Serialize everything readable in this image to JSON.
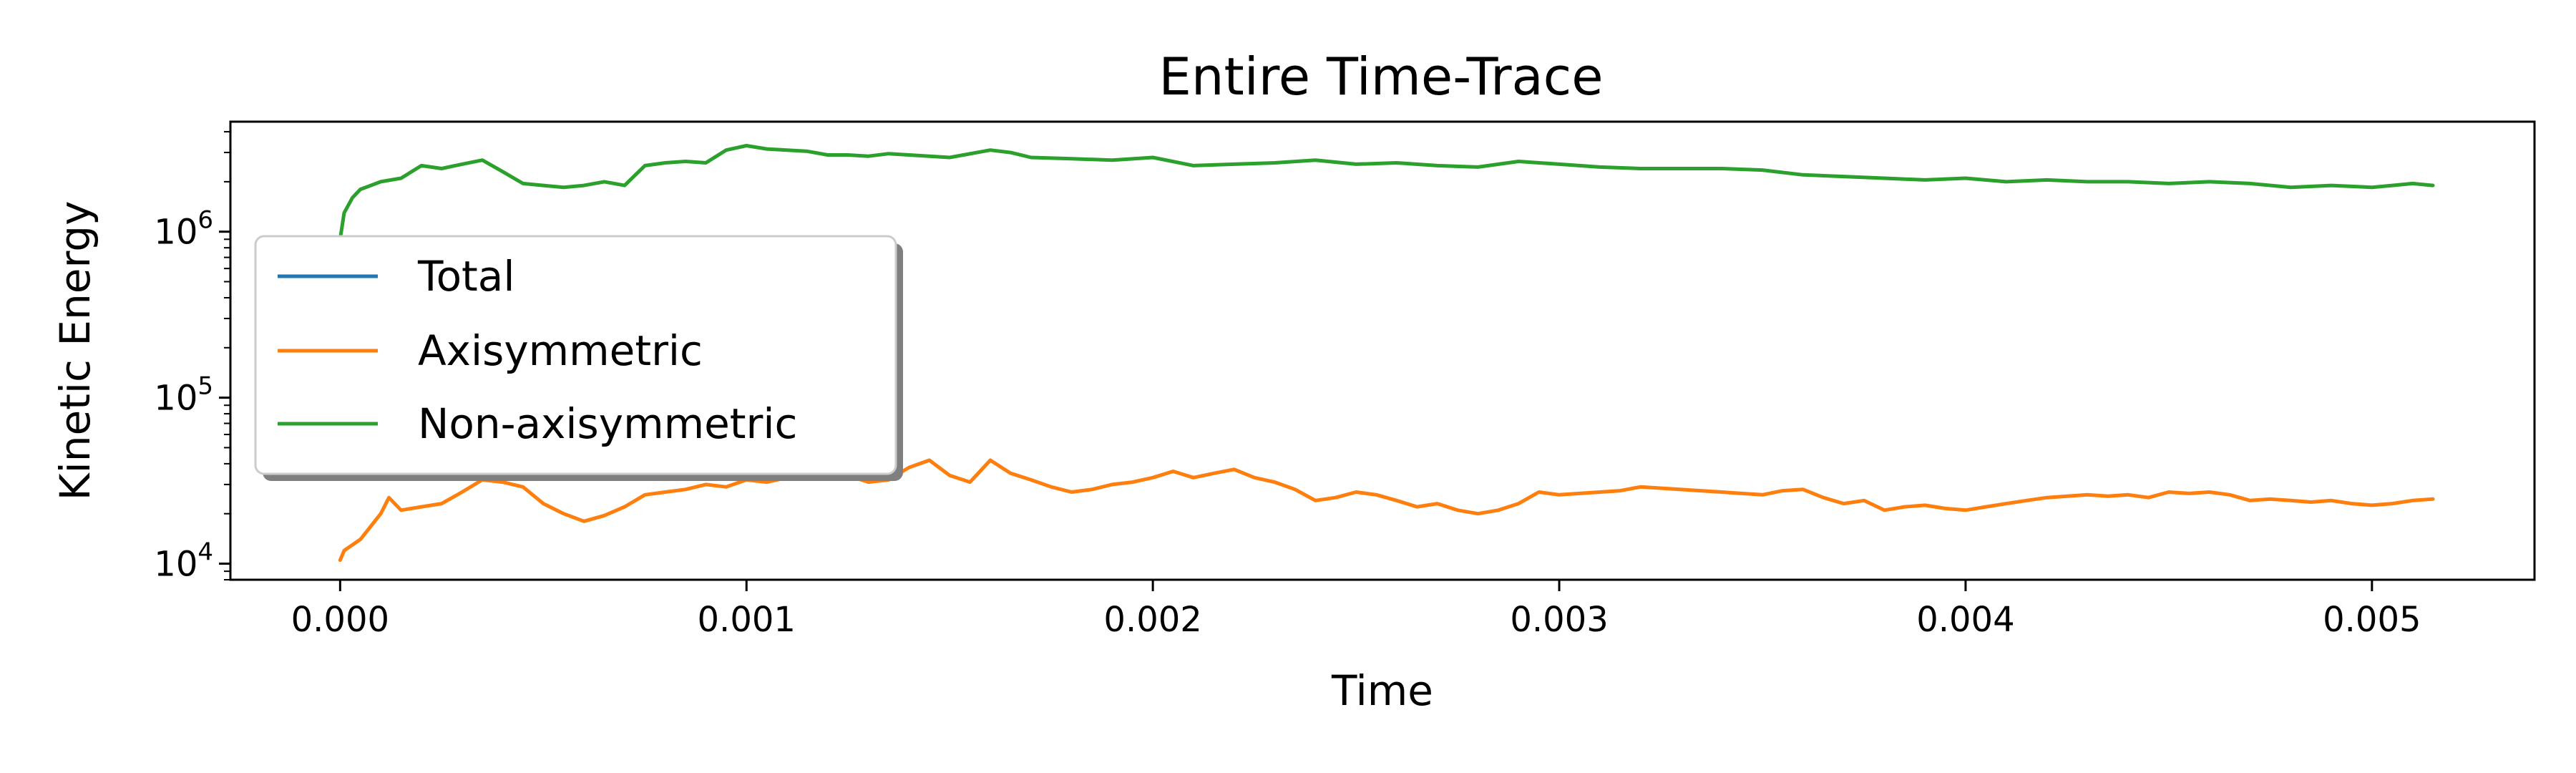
{
  "chart_data": {
    "type": "line",
    "title": "Entire Time-Trace",
    "xlabel": "Time",
    "ylabel": "Kinetic Energy",
    "yscale": "log",
    "xlim": [
      -0.00027,
      0.0054
    ],
    "ylim": [
      8000,
      4600000
    ],
    "xticks": [
      0.0,
      0.001,
      0.002,
      0.003,
      0.004,
      0.005
    ],
    "xtick_labels": [
      "0.000",
      "0.001",
      "0.002",
      "0.003",
      "0.004",
      "0.005"
    ],
    "yticks": [
      10000,
      100000,
      1000000
    ],
    "ytick_base": "10",
    "ytick_exponents": [
      "4",
      "5",
      "6"
    ],
    "grid": false,
    "legend_position": "center-left",
    "series": [
      {
        "name": "Total",
        "color": "#1f77b4",
        "x": [],
        "y": []
      },
      {
        "name": "Axisymmetric",
        "color": "#ff7f0e",
        "x": [
          0.0,
          1e-05,
          5e-05,
          0.0001,
          0.00012,
          0.00015,
          0.0002,
          0.00025,
          0.0003,
          0.00035,
          0.0004,
          0.00045,
          0.0005,
          0.00055,
          0.0006,
          0.00065,
          0.0007,
          0.00075,
          0.0008,
          0.00085,
          0.0009,
          0.00095,
          0.001,
          0.00105,
          0.0011,
          0.00115,
          0.0012,
          0.00125,
          0.0013,
          0.00135,
          0.0014,
          0.00145,
          0.0015,
          0.00155,
          0.0016,
          0.00165,
          0.0017,
          0.00175,
          0.0018,
          0.00185,
          0.0019,
          0.00195,
          0.002,
          0.00205,
          0.0021,
          0.00215,
          0.0022,
          0.00225,
          0.0023,
          0.00235,
          0.0024,
          0.00245,
          0.0025,
          0.00255,
          0.0026,
          0.00265,
          0.0027,
          0.00275,
          0.0028,
          0.00285,
          0.0029,
          0.00295,
          0.003,
          0.00305,
          0.0031,
          0.00315,
          0.0032,
          0.0034,
          0.0035,
          0.00355,
          0.0036,
          0.00365,
          0.0037,
          0.00375,
          0.0038,
          0.00385,
          0.0039,
          0.00395,
          0.004,
          0.00405,
          0.0041,
          0.00415,
          0.0042,
          0.00425,
          0.0043,
          0.00435,
          0.0044,
          0.00445,
          0.0045,
          0.00455,
          0.0046,
          0.00465,
          0.0047,
          0.00475,
          0.0048,
          0.00485,
          0.0049,
          0.00495,
          0.005,
          0.00505,
          0.0051,
          0.00515
        ],
        "y": [
          10500,
          12000,
          14000,
          20000,
          25000,
          21000,
          22000,
          23000,
          27000,
          32000,
          31000,
          29000,
          23000,
          20000,
          18000,
          19500,
          22000,
          26000,
          27000,
          28000,
          30000,
          29000,
          32000,
          31000,
          33000,
          34000,
          35000,
          34000,
          31000,
          32000,
          38000,
          42000,
          34000,
          31000,
          42000,
          35000,
          32000,
          29000,
          27000,
          28000,
          30000,
          31000,
          33000,
          36000,
          33000,
          35000,
          37000,
          33000,
          31000,
          28000,
          24000,
          25000,
          27000,
          26000,
          24000,
          22000,
          23000,
          21000,
          20000,
          21000,
          23000,
          27000,
          26000,
          26500,
          27000,
          27500,
          29000,
          27000,
          26000,
          27500,
          28000,
          25000,
          23000,
          24000,
          21000,
          22000,
          22500,
          21500,
          21000,
          22000,
          23000,
          24000,
          25000,
          25500,
          26000,
          25500,
          26000,
          25000,
          27000,
          26500,
          27000,
          26000,
          24000,
          24500,
          24000,
          23500,
          24000,
          23000,
          22500,
          23000,
          24000,
          24500
        ]
      },
      {
        "name": "Non-axisymmetric",
        "color": "#2ca02c",
        "x": [
          0.0,
          1e-05,
          3e-05,
          5e-05,
          0.0001,
          0.00015,
          0.0002,
          0.00025,
          0.0003,
          0.00035,
          0.0004,
          0.00045,
          0.0005,
          0.00055,
          0.0006,
          0.00065,
          0.0007,
          0.00075,
          0.0008,
          0.00085,
          0.0009,
          0.00095,
          0.001,
          0.00105,
          0.0011,
          0.00115,
          0.0012,
          0.00125,
          0.0013,
          0.00135,
          0.0014,
          0.0015,
          0.0016,
          0.00165,
          0.0017,
          0.0018,
          0.0019,
          0.002,
          0.0021,
          0.0022,
          0.0023,
          0.0024,
          0.0025,
          0.0026,
          0.0027,
          0.0028,
          0.0029,
          0.003,
          0.0031,
          0.0032,
          0.0033,
          0.0034,
          0.0035,
          0.0036,
          0.0037,
          0.0038,
          0.0039,
          0.004,
          0.0041,
          0.0042,
          0.0043,
          0.0044,
          0.0045,
          0.0046,
          0.0047,
          0.0048,
          0.0049,
          0.005,
          0.00505,
          0.0051,
          0.00515
        ],
        "y": [
          900000,
          1300000,
          1600000,
          1800000,
          2000000,
          2100000,
          2500000,
          2400000,
          2550000,
          2700000,
          2300000,
          1950000,
          1900000,
          1850000,
          1900000,
          2000000,
          1900000,
          2500000,
          2600000,
          2650000,
          2600000,
          3100000,
          3300000,
          3150000,
          3100000,
          3050000,
          2900000,
          2900000,
          2850000,
          2950000,
          2900000,
          2800000,
          3100000,
          3000000,
          2800000,
          2750000,
          2700000,
          2800000,
          2500000,
          2550000,
          2600000,
          2700000,
          2550000,
          2600000,
          2500000,
          2450000,
          2650000,
          2550000,
          2450000,
          2400000,
          2400000,
          2400000,
          2350000,
          2200000,
          2150000,
          2100000,
          2050000,
          2100000,
          2000000,
          2050000,
          2000000,
          2000000,
          1950000,
          2000000,
          1950000,
          1850000,
          1900000,
          1850000,
          1900000,
          1950000,
          1900000
        ]
      }
    ]
  }
}
